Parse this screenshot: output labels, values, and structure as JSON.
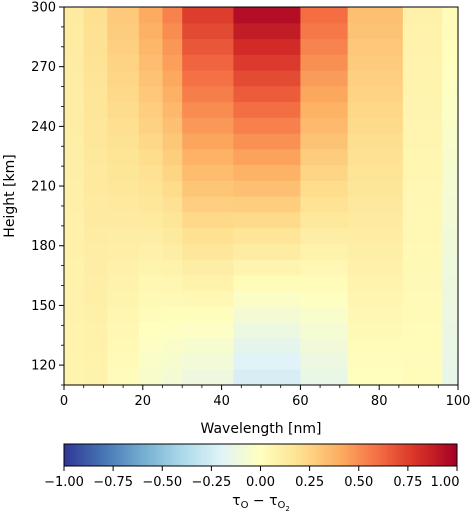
{
  "chart_data": {
    "type": "heatmap",
    "xlabel": "Wavelength [nm]",
    "ylabel": "Height [km]",
    "xlim": [
      0,
      100
    ],
    "ylim": [
      110,
      300
    ],
    "xticks": [
      0,
      20,
      40,
      60,
      80,
      100
    ],
    "yticks": [
      120,
      150,
      180,
      210,
      240,
      270,
      300
    ],
    "xtick_labels": [
      "0",
      "20",
      "40",
      "60",
      "80",
      "100"
    ],
    "ytick_labels": [
      "120",
      "150",
      "180",
      "210",
      "240",
      "270",
      "300"
    ],
    "colormap": "RdYlBu_r",
    "vmin": -1.0,
    "vmax": 1.0,
    "colorbar_ticks": [
      -1.0,
      -0.75,
      -0.5,
      -0.25,
      0.0,
      0.25,
      0.5,
      0.75,
      1.0
    ],
    "colorbar_tick_labels": [
      "−1.00",
      "−0.75",
      "−0.50",
      "−0.25",
      "0.00",
      "0.25",
      "0.50",
      "0.75",
      "1.00"
    ],
    "colorbar_label_main": "τ",
    "colorbar_label_sub1": "O",
    "colorbar_label_minus": " − τ",
    "colorbar_label_sub2": "O",
    "colorbar_label_subsub": "2",
    "wavelength_bins": [
      0,
      5,
      11,
      19,
      25,
      30,
      43,
      60,
      72,
      86,
      96,
      100
    ],
    "height_rows": [
      110,
      300
    ],
    "bins": [
      {
        "x0": 0,
        "x1": 5,
        "low": 0.07,
        "high": 0.13
      },
      {
        "x0": 5,
        "x1": 11,
        "low": 0.08,
        "high": 0.2
      },
      {
        "x0": 11,
        "x1": 19,
        "low": 0.02,
        "high": 0.3
      },
      {
        "x0": 19,
        "x1": 25,
        "low": -0.05,
        "high": 0.42
      },
      {
        "x0": 25,
        "x1": 30,
        "low": -0.08,
        "high": 0.55
      },
      {
        "x0": 30,
        "x1": 43,
        "low": -0.12,
        "high": 0.78
      },
      {
        "x0": 43,
        "x1": 60,
        "low": -0.25,
        "high": 0.97
      },
      {
        "x0": 60,
        "x1": 72,
        "low": -0.15,
        "high": 0.62
      },
      {
        "x0": 72,
        "x1": 86,
        "low": 0.0,
        "high": 0.34
      },
      {
        "x0": 86,
        "x1": 96,
        "low": 0.02,
        "high": 0.09
      },
      {
        "x0": 96,
        "x1": 100,
        "low": -0.15,
        "high": 0.03
      }
    ],
    "profile_note": "values rise from low (at 110 km) to high (at 300 km)"
  }
}
